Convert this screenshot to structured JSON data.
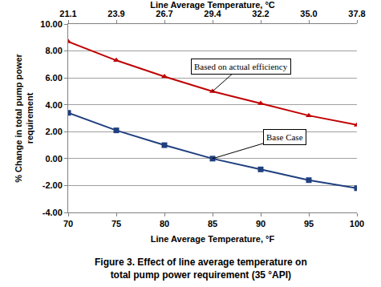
{
  "chart_data": {
    "type": "line",
    "title": "Figure 3. Effect of line average temperature on\ntotal pump power requirement (35 °API)",
    "x_label": "Line Average Temperature, °F",
    "x2_label": "Line Average Temperature, °C",
    "y_label": "% Change in total pump power\nrequirement",
    "x": [
      70,
      75,
      80,
      85,
      90,
      95,
      100
    ],
    "series": [
      {
        "name": "Based on actual efficiency",
        "color": "#c00000",
        "marker": "triangle",
        "values": [
          8.7,
          7.3,
          6.1,
          5.0,
          4.1,
          3.2,
          2.5
        ]
      },
      {
        "name": "Base Case",
        "color": "#1f3f7f",
        "marker": "square",
        "values": [
          3.4,
          2.1,
          1.0,
          0.0,
          -0.8,
          -1.6,
          -2.2
        ]
      }
    ],
    "xlim": [
      70,
      100
    ],
    "xticks": [
      70,
      75,
      80,
      85,
      90,
      95,
      100
    ],
    "x2ticks": [
      {
        "value": 70,
        "label": "21.1"
      },
      {
        "value": 75,
        "label": "23.9"
      },
      {
        "value": 80,
        "label": "26.7"
      },
      {
        "value": 85,
        "label": "29.4"
      },
      {
        "value": 90,
        "label": "32.2"
      },
      {
        "value": 95,
        "label": "35.0"
      },
      {
        "value": 100,
        "label": "37.8"
      }
    ],
    "ylim": [
      -4,
      10
    ],
    "yticks": [
      {
        "value": -4,
        "label": "-4.00"
      },
      {
        "value": -2,
        "label": "-2.00"
      },
      {
        "value": 0,
        "label": "0.00"
      },
      {
        "value": 2,
        "label": "2.00"
      },
      {
        "value": 4,
        "label": "4.00"
      },
      {
        "value": 6,
        "label": "6.00"
      },
      {
        "value": 8,
        "label": "8.00"
      },
      {
        "value": 10,
        "label": "10.00"
      }
    ],
    "grid": "y"
  }
}
